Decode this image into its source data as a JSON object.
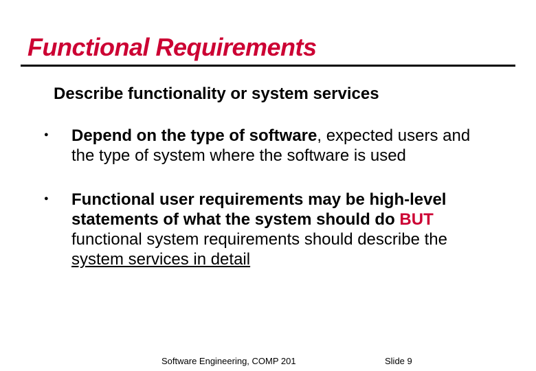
{
  "slide": {
    "title": "Functional Requirements",
    "title_color": "#cc0033",
    "rule_color": "#000000",
    "subtitle": "Describe functionality or system services",
    "bullets": [
      {
        "parts": [
          {
            "text": "Depend on the type of software",
            "style": "bold"
          },
          {
            "text": ", expected users and the type of system where the software is used",
            "style": ""
          }
        ]
      },
      {
        "parts": [
          {
            "text": "Functional user requirements may be high-level statements of what the system should do ",
            "style": "bold"
          },
          {
            "text": "BUT",
            "style": "red-bold"
          },
          {
            "text": " functional system requirements should describe the ",
            "style": ""
          },
          {
            "text": "system services in detail",
            "style": "underline"
          }
        ]
      }
    ],
    "footer_left": "Software Engineering, COMP 201",
    "footer_right": "Slide  9"
  },
  "styling": {
    "background_color": "#ffffff",
    "title_fontsize": 36,
    "subtitle_fontsize": 24,
    "bullet_fontsize": 24,
    "footer_fontsize": 13,
    "accent_color": "#cc0033",
    "text_color": "#000000"
  }
}
